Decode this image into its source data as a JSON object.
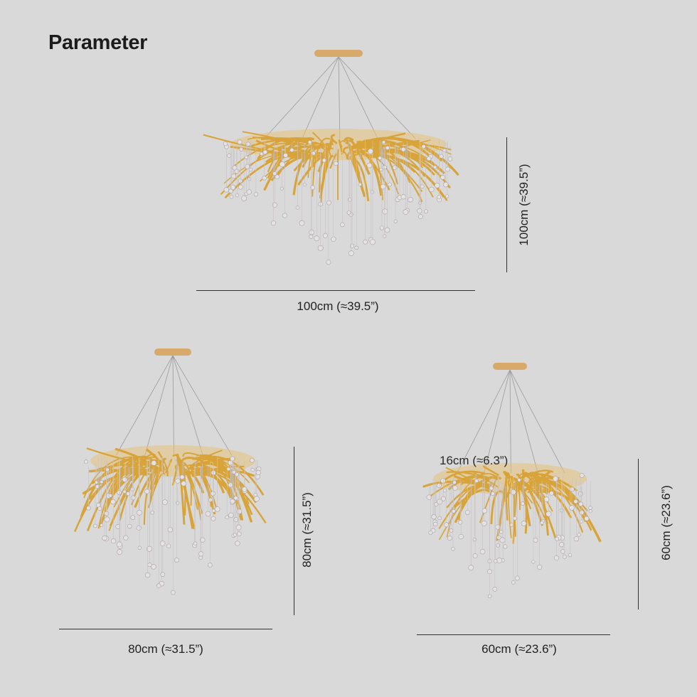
{
  "title": "Parameter",
  "colors": {
    "background": "#d9d9d9",
    "gold": "#d8a43a",
    "crystal": "#e6e2e4"
  },
  "products": [
    {
      "width_label": "100cm (≈39.5”)",
      "height_label": "100cm (≈39.5”)"
    },
    {
      "width_label": "80cm (≈31.5”)",
      "height_label": "80cm (≈31.5”)"
    },
    {
      "width_label": "60cm (≈23.6”)",
      "height_label": "60cm (≈23.6”)",
      "canopy_label": "16cm (≈6.3”)"
    }
  ]
}
